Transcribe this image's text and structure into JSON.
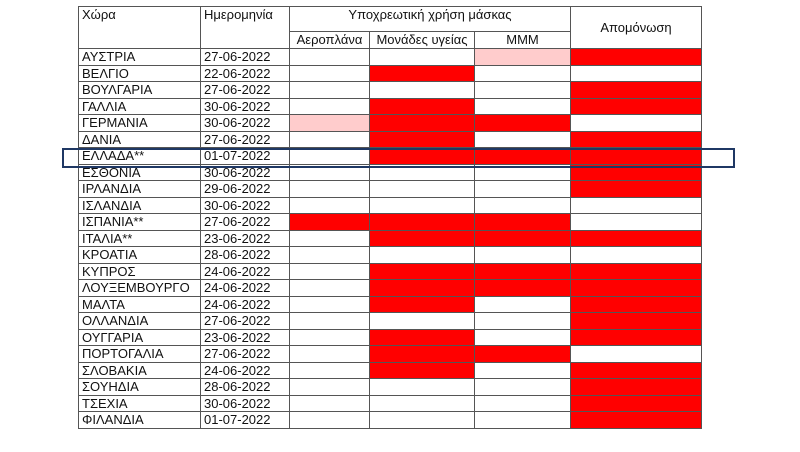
{
  "header": {
    "country": "Χώρα",
    "date": "Ημερομηνία",
    "mask_group": "Υποχρεωτική χρήση μάσκας",
    "planes": "Αεροπλάνα",
    "health_units": "Μονάδες υγείας",
    "mmm": "ΜΜΜ",
    "isolation": "Απομόνωση"
  },
  "legend_states": {
    "0": "none",
    "1": "required",
    "2": "partial"
  },
  "colors": {
    "required": "#ff0000",
    "partial": "#ffcccc",
    "highlight": "#1f3864"
  },
  "highlighted_row": "ΕΛΛΑΔΑ**",
  "rows": [
    {
      "country": "ΑΥΣΤΡΙΑ",
      "date": "27-06-2022",
      "cells": [
        0,
        0,
        2,
        1
      ]
    },
    {
      "country": "ΒΕΛΓΙΟ",
      "date": "22-06-2022",
      "cells": [
        0,
        1,
        0,
        0
      ]
    },
    {
      "country": "ΒΟΥΛΓΑΡΙΑ",
      "date": "27-06-2022",
      "cells": [
        0,
        0,
        0,
        1
      ]
    },
    {
      "country": "ΓΑΛΛΙΑ",
      "date": "30-06-2022",
      "cells": [
        0,
        1,
        0,
        1
      ]
    },
    {
      "country": "ΓΕΡΜΑΝΙΑ",
      "date": "30-06-2022",
      "cells": [
        2,
        1,
        1,
        0
      ]
    },
    {
      "country": "ΔΑΝΙΑ",
      "date": "27-06-2022",
      "cells": [
        0,
        1,
        0,
        1
      ]
    },
    {
      "country": "ΕΛΛΑΔΑ**",
      "date": "01-07-2022",
      "cells": [
        0,
        1,
        1,
        1
      ]
    },
    {
      "country": "ΕΣΘΟΝΙΑ",
      "date": "30-06-2022",
      "cells": [
        0,
        0,
        0,
        1
      ]
    },
    {
      "country": "ΙΡΛΑΝΔΙΑ",
      "date": "29-06-2022",
      "cells": [
        0,
        0,
        0,
        1
      ]
    },
    {
      "country": "ΙΣΛΑΝΔΙΑ",
      "date": "30-06-2022",
      "cells": [
        0,
        0,
        0,
        0
      ]
    },
    {
      "country": "ΙΣΠΑΝΙΑ**",
      "date": "27-06-2022",
      "cells": [
        1,
        1,
        1,
        0
      ]
    },
    {
      "country": "ΙΤΑΛΙΑ**",
      "date": "23-06-2022",
      "cells": [
        0,
        1,
        1,
        1
      ]
    },
    {
      "country": "ΚΡΟΑΤΙΑ",
      "date": "28-06-2022",
      "cells": [
        0,
        0,
        0,
        0
      ]
    },
    {
      "country": "ΚΥΠΡΟΣ",
      "date": "24-06-2022",
      "cells": [
        0,
        1,
        1,
        1
      ]
    },
    {
      "country": "ΛΟΥΞΕΜΒΟΥΡΓΟ",
      "date": "24-06-2022",
      "cells": [
        0,
        1,
        1,
        1
      ]
    },
    {
      "country": "ΜΑΛΤΑ",
      "date": "24-06-2022",
      "cells": [
        0,
        1,
        0,
        1
      ]
    },
    {
      "country": "ΟΛΛΑΝΔΙΑ",
      "date": "27-06-2022",
      "cells": [
        0,
        0,
        0,
        1
      ]
    },
    {
      "country": "ΟΥΓΓΑΡΙΑ",
      "date": "23-06-2022",
      "cells": [
        0,
        1,
        0,
        1
      ]
    },
    {
      "country": "ΠΟΡΤΟΓΑΛΙΑ",
      "date": "27-06-2022",
      "cells": [
        0,
        1,
        1,
        0
      ]
    },
    {
      "country": "ΣΛΟΒΑΚΙΑ",
      "date": "24-06-2022",
      "cells": [
        0,
        1,
        0,
        1
      ]
    },
    {
      "country": "ΣΟΥΗΔΙΑ",
      "date": "28-06-2022",
      "cells": [
        0,
        0,
        0,
        1
      ]
    },
    {
      "country": "ΤΣΕΧΙΑ",
      "date": "30-06-2022",
      "cells": [
        0,
        0,
        0,
        1
      ]
    },
    {
      "country": "ΦΙΛΑΝΔΙΑ",
      "date": "01-07-2022",
      "cells": [
        0,
        0,
        0,
        1
      ]
    }
  ]
}
